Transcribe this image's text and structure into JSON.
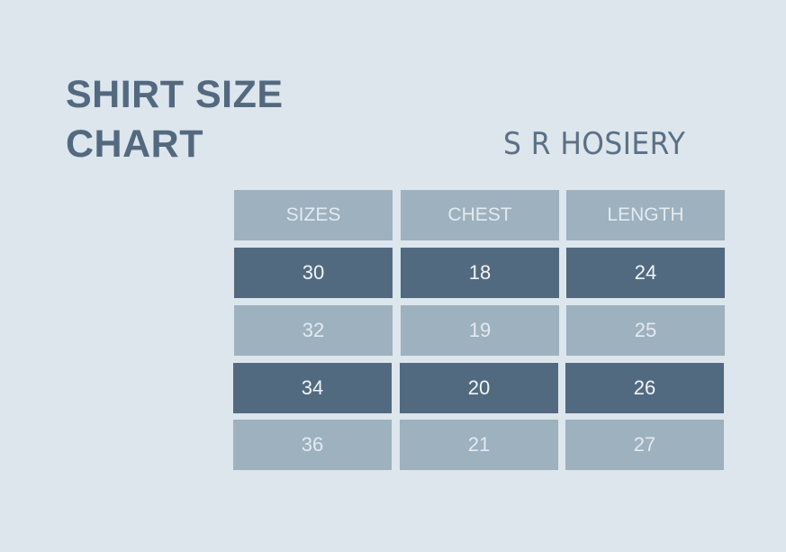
{
  "title_line1": "SHIRT SIZE",
  "title_line2": "CHART",
  "brand": "S R HOSIERY",
  "colors": {
    "background": "#dde5ed",
    "light_cell": "#9db1bf",
    "dark_cell": "#526a80",
    "title": "#53697f"
  },
  "table": {
    "headers": [
      "SIZES",
      "CHEST",
      "LENGTH"
    ],
    "rows": [
      [
        "30",
        "18",
        "24"
      ],
      [
        "32",
        "19",
        "25"
      ],
      [
        "34",
        "20",
        "26"
      ],
      [
        "36",
        "21",
        "27"
      ]
    ]
  }
}
